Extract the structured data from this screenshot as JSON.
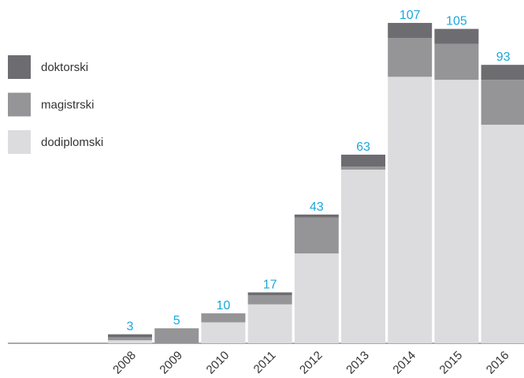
{
  "chart_data": {
    "type": "bar",
    "stacked": true,
    "categories": [
      "2008",
      "2009",
      "2010",
      "2011",
      "2012",
      "2013",
      "2014",
      "2015",
      "2016"
    ],
    "series": [
      {
        "name": "dodiplomski",
        "color": "#dcdcde",
        "values": [
          1,
          0,
          7,
          13,
          30,
          58,
          89,
          88,
          73
        ]
      },
      {
        "name": "magistrski",
        "color": "#959598",
        "values": [
          1,
          5,
          3,
          3,
          12,
          1,
          13,
          12,
          15
        ]
      },
      {
        "name": "doktorski",
        "color": "#6d6d71",
        "values": [
          1,
          0,
          0,
          1,
          1,
          4,
          5,
          5,
          5
        ]
      }
    ],
    "totals": [
      3,
      5,
      10,
      17,
      43,
      63,
      107,
      105,
      93
    ]
  }
}
